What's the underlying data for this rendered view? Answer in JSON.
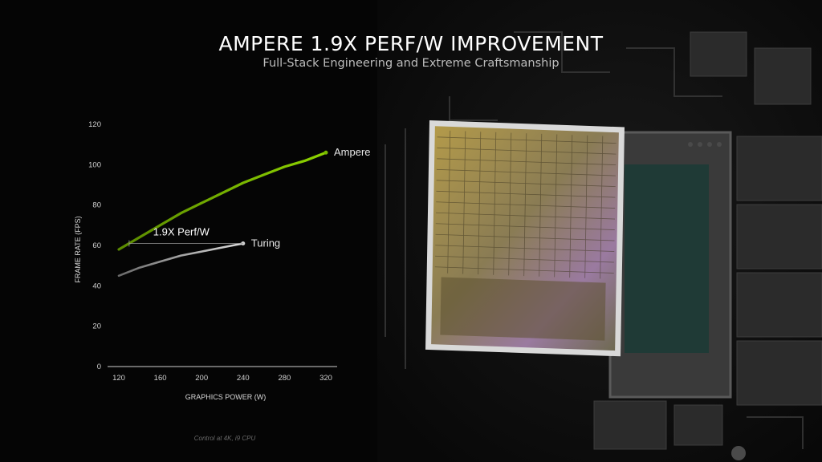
{
  "header": {
    "title": "AMPERE 1.9X PERF/W IMPROVEMENT",
    "subtitle": "Full-Stack Engineering and Extreme Craftsmanship"
  },
  "footnote": "Control at 4K, i9 CPU",
  "colors": {
    "ampere": "#76b900",
    "turing": "#d0d0d0",
    "axis": "#cfcfcf",
    "background": "#050505"
  },
  "chart_data": {
    "type": "line",
    "title": "",
    "xlabel": "GRAPHICS POWER (W)",
    "ylabel": "FRAME RATE (FPS)",
    "xlim": [
      120,
      320
    ],
    "ylim": [
      0,
      120
    ],
    "xticks": [
      120,
      160,
      200,
      240,
      280,
      320
    ],
    "yticks": [
      0,
      20,
      40,
      60,
      80,
      100,
      120
    ],
    "grid": false,
    "series": [
      {
        "name": "Ampere",
        "x": [
          120,
          140,
          160,
          180,
          200,
          220,
          240,
          260,
          280,
          300,
          320
        ],
        "y": [
          58,
          64,
          70,
          76,
          81,
          86,
          91,
          95,
          99,
          102,
          106
        ]
      },
      {
        "name": "Turing",
        "x": [
          120,
          140,
          160,
          180,
          200,
          220,
          240
        ],
        "y": [
          45,
          49,
          52,
          55,
          57,
          59,
          61
        ]
      }
    ],
    "annotations": [
      {
        "text": "1.9X Perf/W",
        "y": 61,
        "x_from": 130,
        "x_to": 240
      }
    ]
  }
}
